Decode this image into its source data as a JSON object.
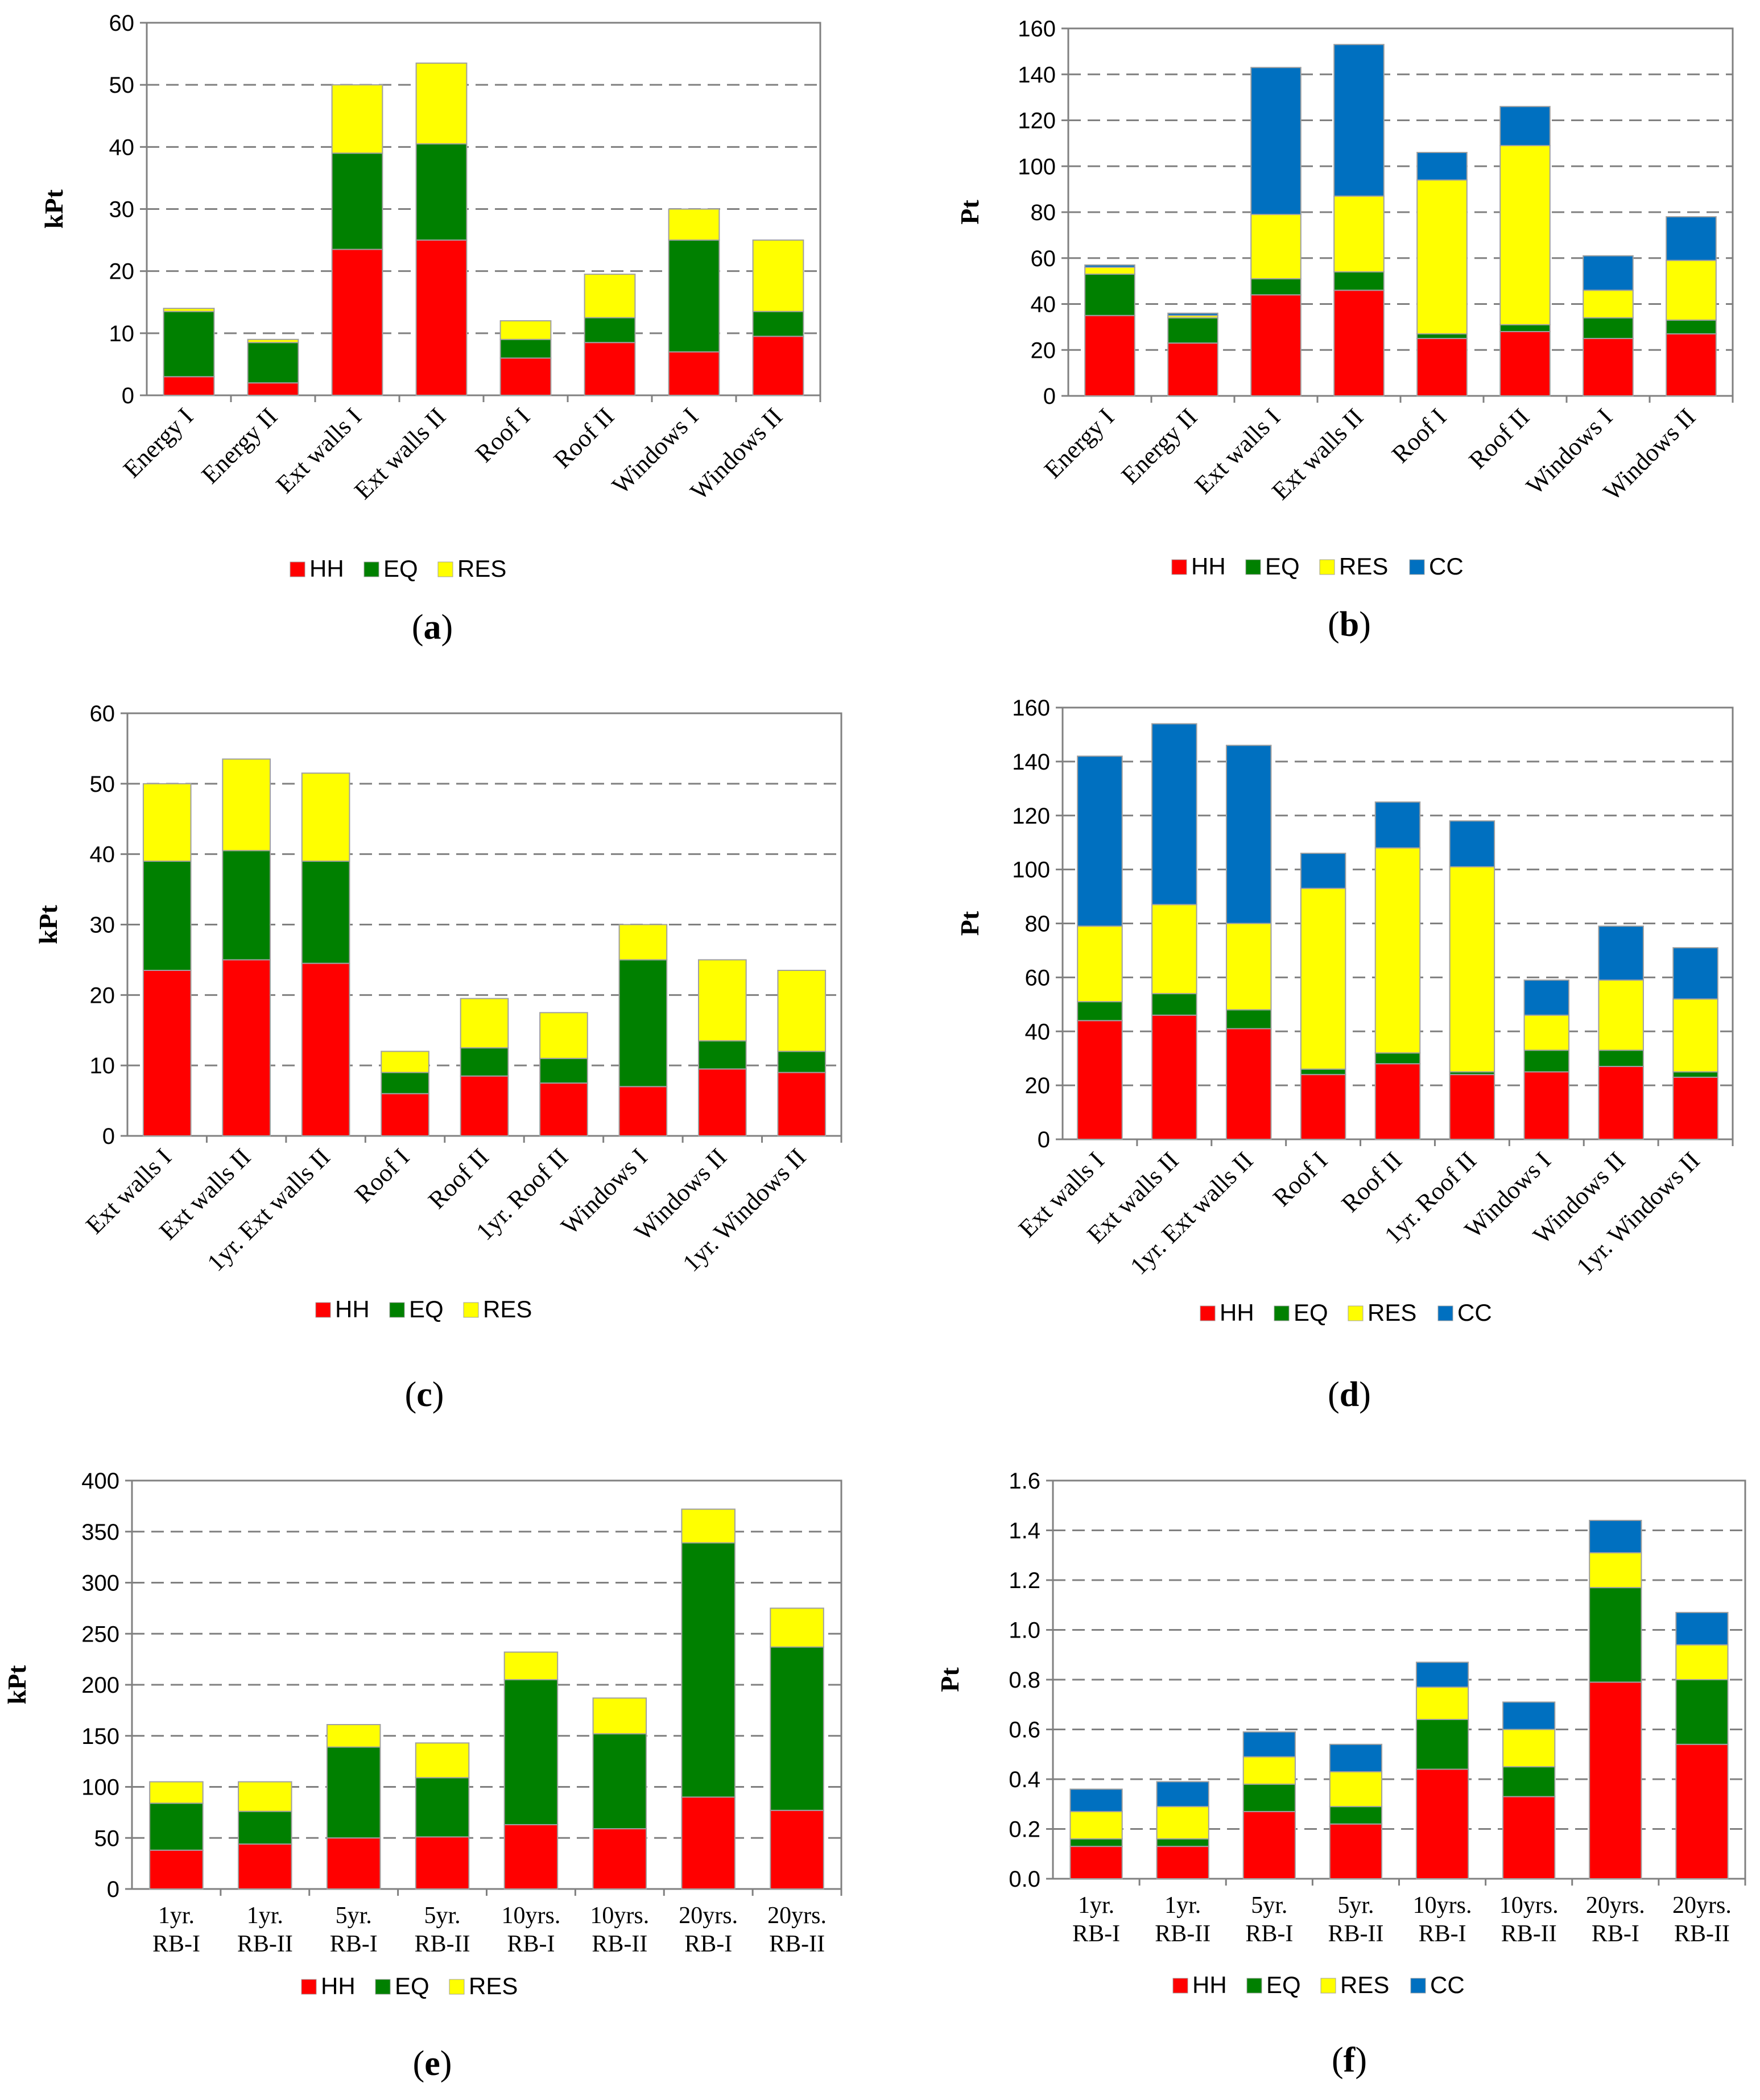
{
  "colors": {
    "HH": "#ff0000",
    "EQ": "#008000",
    "RES": "#ffff00",
    "CC": "#0070c0"
  },
  "chart_data": [
    {
      "id": "a",
      "type": "bar",
      "stacked": true,
      "panel_label": "(a)",
      "title": "",
      "xlabel": "",
      "ylabel": "kPt",
      "ylim": [
        0,
        60
      ],
      "ytick_labels": [
        "0",
        "10",
        "20",
        "30",
        "40",
        "50",
        "60"
      ],
      "categories": [
        "Energy I",
        "Energy II",
        "Ext walls I",
        "Ext walls II",
        "Roof I",
        "Roof II",
        "Windows I",
        "Windows II"
      ],
      "series": [
        {
          "name": "HH",
          "values": [
            3,
            2,
            23.5,
            25,
            6,
            8.5,
            7,
            9.5
          ]
        },
        {
          "name": "EQ",
          "values": [
            10.5,
            6.5,
            15.5,
            15.5,
            3,
            4,
            18,
            4
          ]
        },
        {
          "name": "RES",
          "values": [
            0.5,
            0.5,
            11,
            13,
            3,
            7,
            5,
            11.5
          ]
        }
      ]
    },
    {
      "id": "b",
      "type": "bar",
      "stacked": true,
      "panel_label": "(b)",
      "title": "",
      "xlabel": "",
      "ylabel": "Pt",
      "ylim": [
        0,
        160
      ],
      "ytick_labels": [
        "0",
        "20",
        "40",
        "60",
        "80",
        "100",
        "120",
        "140",
        "160"
      ],
      "categories": [
        "Energy I",
        "Energy II",
        "Ext walls I",
        "Ext walls II",
        "Roof I",
        "Roof II",
        "Windows I",
        "Windows II"
      ],
      "series": [
        {
          "name": "HH",
          "values": [
            35,
            23,
            44,
            46,
            25,
            28,
            25,
            27
          ]
        },
        {
          "name": "EQ",
          "values": [
            18,
            11,
            7,
            8,
            2,
            3,
            9,
            6
          ]
        },
        {
          "name": "RES",
          "values": [
            3,
            1,
            28,
            33,
            67,
            78,
            12,
            26
          ]
        },
        {
          "name": "CC",
          "values": [
            1,
            1,
            64,
            66,
            12,
            17,
            15,
            19
          ]
        }
      ]
    },
    {
      "id": "c",
      "type": "bar",
      "stacked": true,
      "panel_label": "(c)",
      "title": "",
      "xlabel": "",
      "ylabel": "kPt",
      "ylim": [
        0,
        60
      ],
      "ytick_labels": [
        "0",
        "10",
        "20",
        "30",
        "40",
        "50",
        "60"
      ],
      "categories": [
        "Ext walls I",
        "Ext walls II",
        "1yr. Ext walls II",
        "Roof I",
        "Roof II",
        "1yr. Roof II",
        "Windows I",
        "Windows II",
        "1yr. Windows II"
      ],
      "series": [
        {
          "name": "HH",
          "values": [
            23.5,
            25,
            24.5,
            6,
            8.5,
            7.5,
            7,
            9.5,
            9
          ]
        },
        {
          "name": "EQ",
          "values": [
            15.5,
            15.5,
            14.5,
            3,
            4,
            3.5,
            18,
            4,
            3
          ]
        },
        {
          "name": "RES",
          "values": [
            11,
            13,
            12.5,
            3,
            7,
            6.5,
            5,
            11.5,
            11.5
          ]
        }
      ]
    },
    {
      "id": "d",
      "type": "bar",
      "stacked": true,
      "panel_label": "(d)",
      "title": "",
      "xlabel": "",
      "ylabel": "Pt",
      "ylim": [
        0,
        160
      ],
      "ytick_labels": [
        "0",
        "20",
        "40",
        "60",
        "80",
        "100",
        "120",
        "140",
        "160"
      ],
      "categories": [
        "Ext walls I",
        "Ext walls II",
        "1yr. Ext walls II",
        "Roof I",
        "Roof II",
        "1yr. Roof II",
        "Windows I",
        "Windows II",
        "1yr. Windows II"
      ],
      "series": [
        {
          "name": "HH",
          "values": [
            44,
            46,
            41,
            24,
            28,
            24,
            25,
            27,
            23
          ]
        },
        {
          "name": "EQ",
          "values": [
            7,
            8,
            7,
            2,
            4,
            1,
            8,
            6,
            2
          ]
        },
        {
          "name": "RES",
          "values": [
            28,
            33,
            32,
            67,
            76,
            76,
            13,
            26,
            27
          ]
        },
        {
          "name": "CC",
          "values": [
            63,
            67,
            66,
            13,
            17,
            17,
            13,
            20,
            19
          ]
        }
      ]
    },
    {
      "id": "e",
      "type": "bar",
      "stacked": true,
      "panel_label": "(e)",
      "title": "",
      "xlabel": "",
      "ylabel": "kPt",
      "ylim": [
        0,
        400
      ],
      "ytick_labels": [
        "0",
        "50",
        "100",
        "150",
        "200",
        "250",
        "300",
        "350",
        "400"
      ],
      "categories": [
        "1yr. RB-I",
        "1yr. RB-II",
        "5yr. RB-I",
        "5yr. RB-II",
        "10yrs. RB-I",
        "10yrs. RB-II",
        "20yrs. RB-I",
        "20yrs. RB-II"
      ],
      "category_lines": [
        [
          "1yr.",
          "RB-I"
        ],
        [
          "1yr.",
          "RB-II"
        ],
        [
          "5yr.",
          "RB-I"
        ],
        [
          "5yr.",
          "RB-II"
        ],
        [
          "10yrs.",
          "RB-I"
        ],
        [
          "10yrs.",
          "RB-II"
        ],
        [
          "20yrs.",
          "RB-I"
        ],
        [
          "20yrs.",
          "RB-II"
        ]
      ],
      "series": [
        {
          "name": "HH",
          "values": [
            38,
            44,
            50,
            51,
            63,
            59,
            90,
            77
          ]
        },
        {
          "name": "EQ",
          "values": [
            46,
            32,
            89,
            58,
            142,
            93,
            249,
            160
          ]
        },
        {
          "name": "RES",
          "values": [
            21,
            29,
            22,
            34,
            27,
            35,
            33,
            38
          ]
        }
      ]
    },
    {
      "id": "f",
      "type": "bar",
      "stacked": true,
      "panel_label": "(f)",
      "title": "",
      "xlabel": "",
      "ylabel": "Pt",
      "ylim": [
        0,
        1.6
      ],
      "ytick_labels": [
        "0.0",
        "0.2",
        "0.4",
        "0.6",
        "0.8",
        "1.0",
        "1.2",
        "1.4",
        "1.6"
      ],
      "categories": [
        "1yr. RB-I",
        "1yr. RB-II",
        "5yr. RB-I",
        "5yr. RB-II",
        "10yrs. RB-I",
        "10yrs. RB-II",
        "20yrs. RB-I",
        "20yrs. RB-II"
      ],
      "category_lines": [
        [
          "1yr.",
          "RB-I"
        ],
        [
          "1yr.",
          "RB-II"
        ],
        [
          "5yr.",
          "RB-I"
        ],
        [
          "5yr.",
          "RB-II"
        ],
        [
          "10yrs.",
          "RB-I"
        ],
        [
          "10yrs.",
          "RB-II"
        ],
        [
          "20yrs.",
          "RB-I"
        ],
        [
          "20yrs.",
          "RB-II"
        ]
      ],
      "series": [
        {
          "name": "HH",
          "values": [
            0.13,
            0.13,
            0.27,
            0.22,
            0.44,
            0.33,
            0.79,
            0.54
          ]
        },
        {
          "name": "EQ",
          "values": [
            0.03,
            0.03,
            0.11,
            0.07,
            0.2,
            0.12,
            0.38,
            0.26
          ]
        },
        {
          "name": "RES",
          "values": [
            0.11,
            0.13,
            0.11,
            0.14,
            0.13,
            0.15,
            0.14,
            0.14
          ]
        },
        {
          "name": "CC",
          "values": [
            0.09,
            0.1,
            0.1,
            0.11,
            0.1,
            0.11,
            0.13,
            0.13
          ]
        }
      ]
    }
  ]
}
